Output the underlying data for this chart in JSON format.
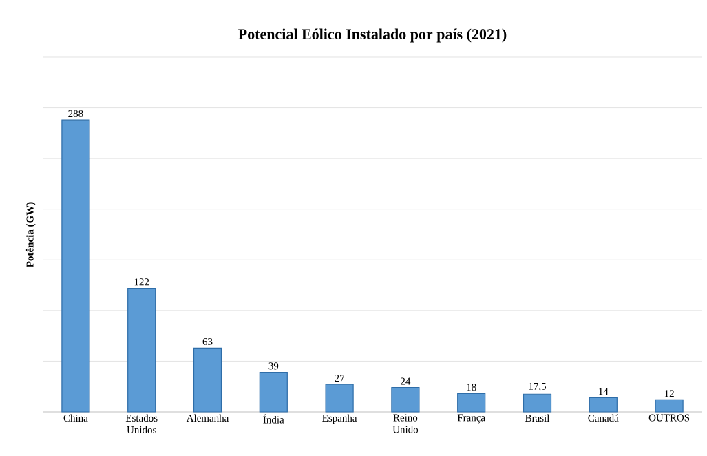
{
  "chart_data": {
    "type": "bar",
    "title": "Potencial Eólico Instalado por país (2021)",
    "ylabel": "Potência (GW)",
    "categories": [
      "China",
      "Estados Unidos",
      "Alemanha",
      "Índia",
      "Espanha",
      "Reino Unido",
      "França",
      "Brasil",
      "Canadá",
      "OUTROS"
    ],
    "values": [
      288,
      122,
      63,
      39,
      27,
      24,
      18,
      17.5,
      14,
      12
    ],
    "value_labels": [
      "288",
      "122",
      "63",
      "39",
      "27",
      "24",
      "18",
      "17,5",
      "14",
      "12"
    ],
    "color": "#5b9bd5",
    "ylim": [
      0,
      350
    ],
    "yticks": [
      {
        "value": 0,
        "label": null
      },
      {
        "value": 50,
        "label": null
      },
      {
        "value": 100,
        "label": null
      },
      {
        "value": 150,
        "label": null
      },
      {
        "value": 200,
        "label": null
      },
      {
        "value": 250,
        "label": null
      },
      {
        "value": 300,
        "label": null
      },
      {
        "value": 350,
        "label": null
      }
    ],
    "tick_labels": "x",
    "grid": "y"
  }
}
